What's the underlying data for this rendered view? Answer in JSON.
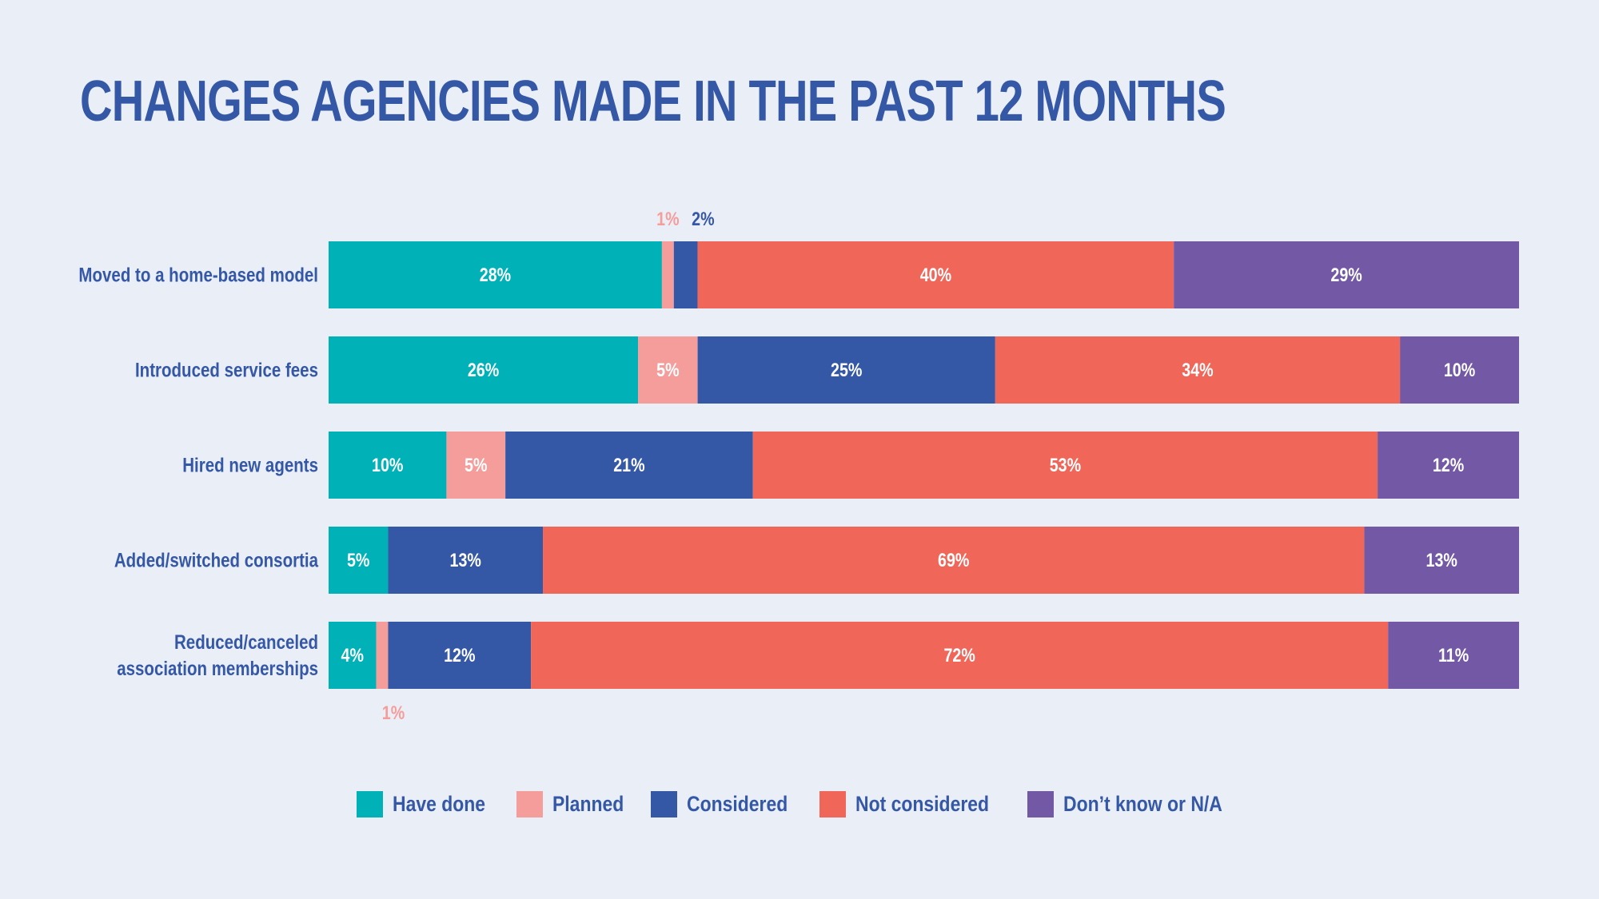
{
  "chart_data": {
    "type": "bar",
    "orientation": "horizontal",
    "stacked": true,
    "title": "CHANGES AGENCIES MADE IN THE PAST 12 MONTHS",
    "categories": [
      "Moved to a home-based model",
      "Introduced service fees",
      "Hired new agents",
      "Added/switched consortia",
      "Reduced/canceled association memberships"
    ],
    "category_lines": [
      [
        "Moved to a home-based model"
      ],
      [
        "Introduced service fees"
      ],
      [
        "Hired new agents"
      ],
      [
        "Added/switched consortia"
      ],
      [
        "Reduced/canceled",
        "association memberships"
      ]
    ],
    "series": [
      {
        "name": "Have done",
        "color": "#00b1b7",
        "values": [
          28,
          26,
          10,
          5,
          4
        ]
      },
      {
        "name": "Planned",
        "color": "#f59d9b",
        "values": [
          1,
          5,
          5,
          0,
          1
        ]
      },
      {
        "name": "Considered",
        "color": "#3457a6",
        "values": [
          2,
          25,
          21,
          13,
          12
        ]
      },
      {
        "name": "Not considered",
        "color": "#f0675a",
        "values": [
          40,
          34,
          53,
          69,
          72
        ]
      },
      {
        "name": "Don’t know or N/A",
        "color": "#7258a5",
        "values": [
          29,
          10,
          12,
          13,
          11
        ]
      }
    ],
    "value_suffix": "%",
    "legend_position": "bottom",
    "grid": false
  },
  "legend": {
    "items": [
      {
        "label": "Have done",
        "color": "#00b1b7"
      },
      {
        "label": "Planned",
        "color": "#f59d9b"
      },
      {
        "label": "Considered",
        "color": "#3457a6"
      },
      {
        "label": "Not considered",
        "color": "#f0675a"
      },
      {
        "label": "Don’t know or N/A",
        "color": "#7258a5"
      }
    ]
  },
  "colors": {
    "background": "#eaeef7",
    "title": "#3457a6",
    "bar_text": "#ffffff"
  }
}
